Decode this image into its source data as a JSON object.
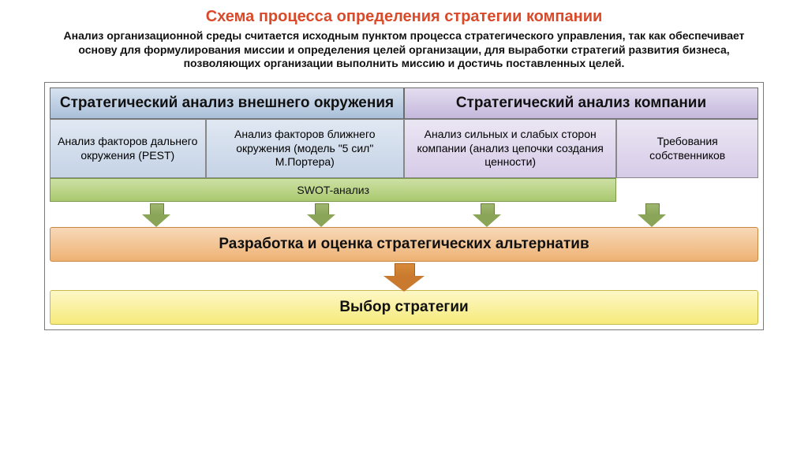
{
  "title": {
    "text": "Схема процесса определения стратегии компании",
    "color": "#d94a2a",
    "fontsize": 20
  },
  "subtitle": {
    "text": "Анализ организационной среды считается исходным пунктом процесса стратегического управления, так как обеспечивает основу для формулирования миссии и определения целей организации, для выработки стратегий развития бизнеса, позволяющих организации выполнить миссию и достичь поставленных целей.",
    "color": "#111111",
    "fontsize": 14
  },
  "diagram": {
    "border_color": "#7a7a7a",
    "top_headers": [
      {
        "label": "Стратегический анализ внешнего окружения",
        "bg_gradient_top": "#d7e2ef",
        "bg_gradient_bottom": "#a9bfd9",
        "text_color": "#111111",
        "fontsize": 19
      },
      {
        "label": "Стратегический анализ компании",
        "bg_gradient_top": "#e4def0",
        "bg_gradient_bottom": "#c4b8dc",
        "text_color": "#111111",
        "fontsize": 19
      }
    ],
    "row2": {
      "cells": [
        {
          "label": "Анализ факторов дальнего окружения (PEST)",
          "width_pct": 22,
          "bg_gradient_top": "#e0e8f2",
          "bg_gradient_bottom": "#c5d3e6",
          "fontsize": 14
        },
        {
          "label": "Анализ факторов ближнего окружения (модель \"5 сил\" М.Портера)",
          "width_pct": 28,
          "bg_gradient_top": "#e0e8f2",
          "bg_gradient_bottom": "#c5d3e6",
          "fontsize": 14
        },
        {
          "label": "Анализ сильных и слабых сторон компании (анализ цепочки создания ценности)",
          "width_pct": 30,
          "bg_gradient_top": "#ebe6f3",
          "bg_gradient_bottom": "#d6cbe8",
          "fontsize": 14
        },
        {
          "label": "Требования собственников",
          "width_pct": 20,
          "bg_gradient_top": "#ebe6f3",
          "bg_gradient_bottom": "#d6cbe8",
          "fontsize": 14
        }
      ]
    },
    "swot": {
      "label": "SWOT-анализ",
      "bg_gradient_top": "#cde0a4",
      "bg_gradient_bottom": "#a9c96f",
      "text_color": "#111111",
      "fontsize": 14,
      "width_pct": 80
    },
    "arrows_small": {
      "count": 4,
      "fill_top": "#9fb76f",
      "fill_bottom": "#8aa558",
      "border": "#6b7f3f"
    },
    "bar_alt": {
      "label": "Разработка и оценка стратегических альтернатив",
      "bg_gradient_top": "#f7d8b8",
      "bg_gradient_bottom": "#eeb273",
      "border": "#c9883f",
      "text_color": "#111111",
      "fontsize": 19
    },
    "arrow_big": {
      "fill_top": "#d98b3a",
      "fill_bottom": "#c97a2e",
      "border": "#a55f1f"
    },
    "bar_choice": {
      "label": "Выбор стратегии",
      "bg_gradient_top": "#fdf7c6",
      "bg_gradient_bottom": "#f6ea7a",
      "border": "#c9b94a",
      "text_color": "#111111",
      "fontsize": 19
    }
  }
}
